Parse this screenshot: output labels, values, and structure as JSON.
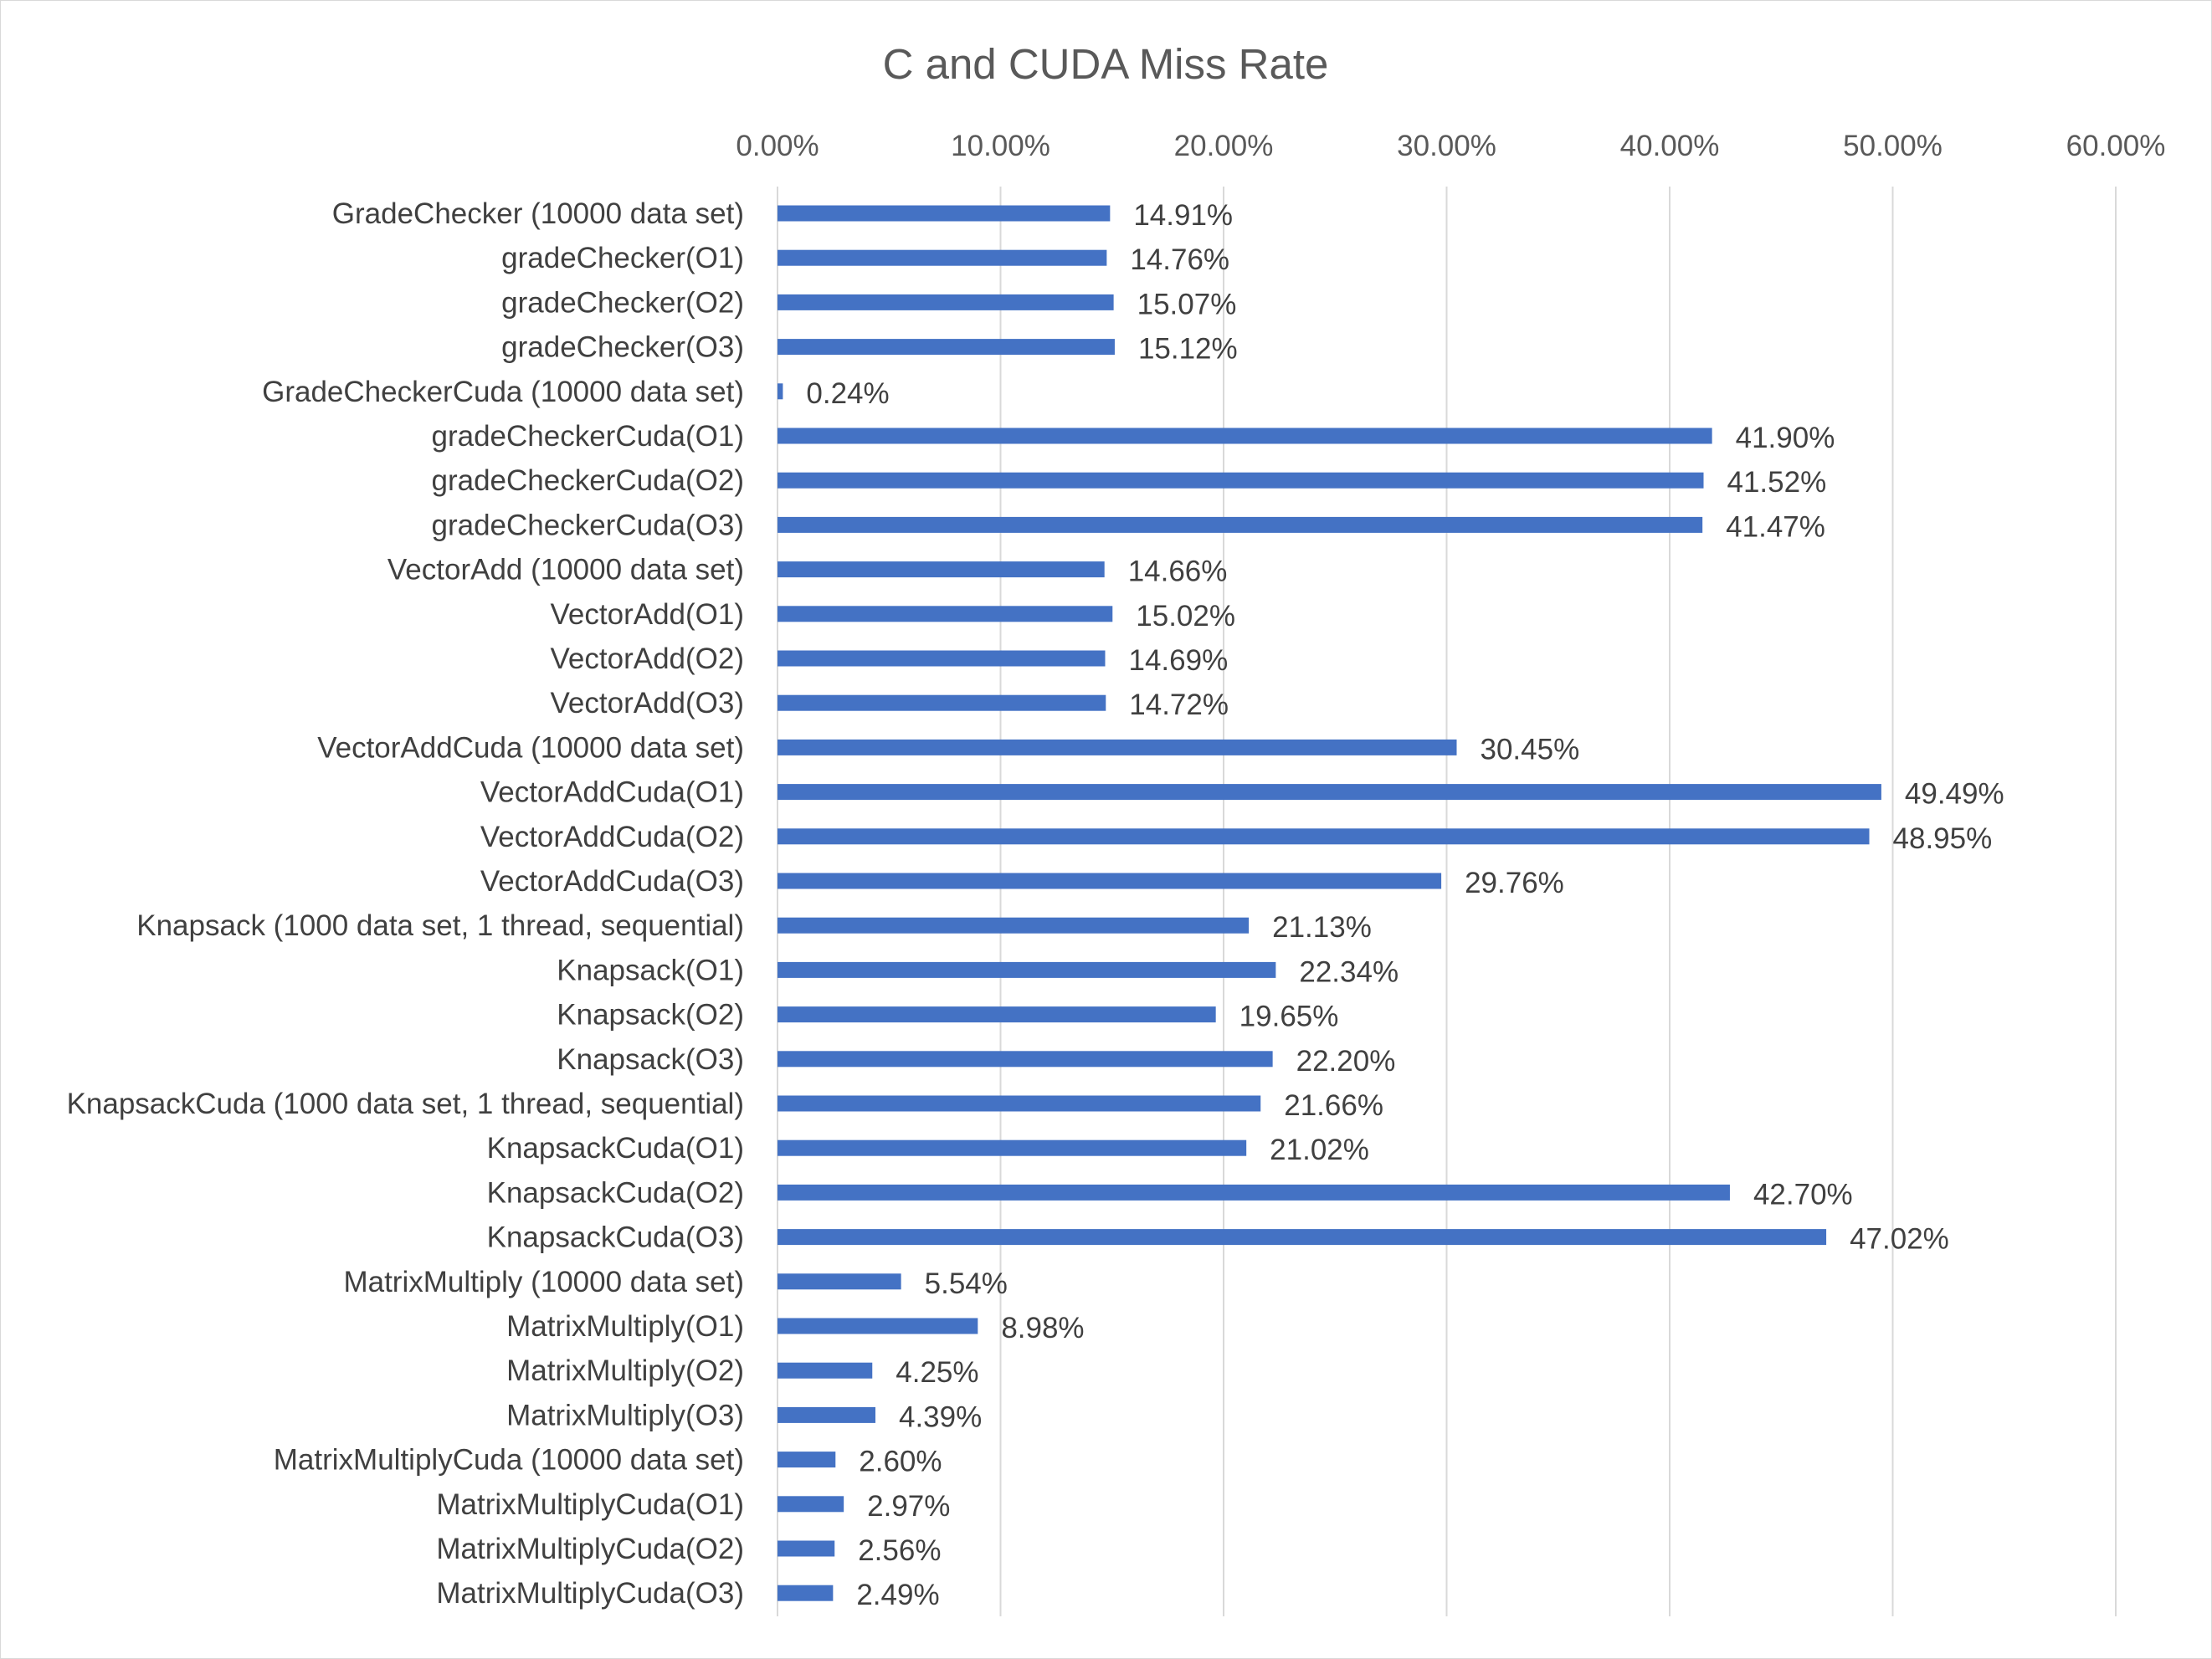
{
  "chart_data": {
    "type": "bar",
    "orientation": "horizontal",
    "title": "C and CUDA Miss Rate",
    "xlabel": "",
    "ylabel": "",
    "xlim": [
      0,
      60
    ],
    "x_axis_position": "top",
    "x_ticks": [
      "0.00%",
      "10.00%",
      "20.00%",
      "30.00%",
      "40.00%",
      "50.00%",
      "60.00%"
    ],
    "grid": true,
    "legend": "none",
    "bar_color": "#4472C4",
    "categories": [
      "GradeChecker (10000 data set)",
      "gradeChecker(O1)",
      "gradeChecker(O2)",
      "gradeChecker(O3)",
      "GradeCheckerCuda (10000 data set)",
      "gradeCheckerCuda(O1)",
      "gradeCheckerCuda(O2)",
      "gradeCheckerCuda(O3)",
      "VectorAdd (10000 data set)",
      "VectorAdd(O1)",
      "VectorAdd(O2)",
      "VectorAdd(O3)",
      "VectorAddCuda (10000 data set)",
      "VectorAddCuda(O1)",
      "VectorAddCuda(O2)",
      "VectorAddCuda(O3)",
      "Knapsack (1000 data set, 1 thread, sequential)",
      "Knapsack(O1)",
      "Knapsack(O2)",
      "Knapsack(O3)",
      "KnapsackCuda (1000 data set, 1 thread, sequential)",
      "KnapsackCuda(O1)",
      "KnapsackCuda(O2)",
      "KnapsackCuda(O3)",
      "MatrixMultiply (10000 data set)",
      "MatrixMultiply(O1)",
      "MatrixMultiply(O2)",
      "MatrixMultiply(O3)",
      "MatrixMultiplyCuda (10000 data set)",
      "MatrixMultiplyCuda(O1)",
      "MatrixMultiplyCuda(O2)",
      "MatrixMultiplyCuda(O3)"
    ],
    "values": [
      14.91,
      14.76,
      15.07,
      15.12,
      0.24,
      41.9,
      41.52,
      41.47,
      14.66,
      15.02,
      14.69,
      14.72,
      30.45,
      49.49,
      48.95,
      29.76,
      21.13,
      22.34,
      19.65,
      22.2,
      21.66,
      21.02,
      42.7,
      47.02,
      5.54,
      8.98,
      4.25,
      4.39,
      2.6,
      2.97,
      2.56,
      2.49
    ],
    "data_labels": [
      "14.91%",
      "14.76%",
      "15.07%",
      "15.12%",
      "0.24%",
      "41.90%",
      "41.52%",
      "41.47%",
      "14.66%",
      "15.02%",
      "14.69%",
      "14.72%",
      "30.45%",
      "49.49%",
      "48.95%",
      "29.76%",
      "21.13%",
      "22.34%",
      "19.65%",
      "22.20%",
      "21.66%",
      "21.02%",
      "42.70%",
      "47.02%",
      "5.54%",
      "8.98%",
      "4.25%",
      "4.39%",
      "2.60%",
      "2.97%",
      "2.56%",
      "2.49%"
    ]
  }
}
